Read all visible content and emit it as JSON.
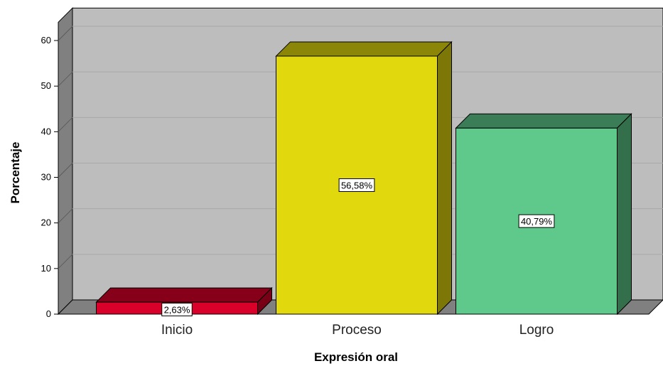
{
  "chart_data": {
    "type": "bar",
    "style": "3d",
    "categories": [
      "Inicio",
      "Proceso",
      "Logro"
    ],
    "values": [
      2.63,
      56.58,
      40.79
    ],
    "data_labels": [
      "2,63%",
      "56,58%",
      "40,79%"
    ],
    "colors": [
      "#d9002a",
      "#e1d80d",
      "#5ec98a"
    ],
    "xlabel": "Expresión oral",
    "ylabel": "Porcentaje",
    "ylim": [
      0,
      60
    ],
    "yticks": [
      0,
      10,
      20,
      30,
      40,
      50,
      60
    ],
    "grid": true,
    "background": "#bdbdbd"
  }
}
